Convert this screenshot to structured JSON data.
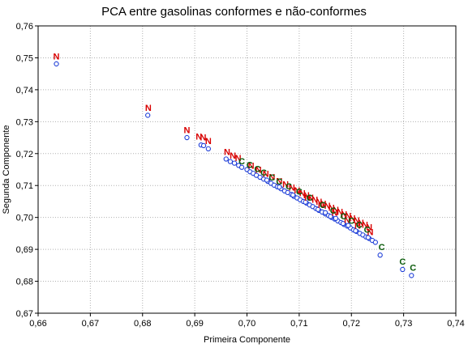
{
  "chart_data": {
    "type": "scatter",
    "title": "PCA entre gasolinas conformes e não-conformes",
    "xlabel": "Primeira Componente",
    "ylabel": "Segunda Componente",
    "xlim": [
      0.66,
      0.74
    ],
    "ylim": [
      0.67,
      0.76
    ],
    "xticks": [
      "0,66",
      "0,67",
      "0,68",
      "0,69",
      "0,70",
      "0,71",
      "0,72",
      "0,73",
      "0,74"
    ],
    "yticks": [
      "0,67",
      "0,68",
      "0,69",
      "0,70",
      "0,71",
      "0,72",
      "0,73",
      "0,74",
      "0,75",
      "0,76"
    ],
    "grid": true,
    "colors": {
      "points": "#1f3fd8",
      "label_N": "#d80000",
      "label_C": "#0a5a0a"
    },
    "series": [
      {
        "marker": "circle",
        "points": [
          [
            0.6635,
            0.7481
          ],
          [
            0.681,
            0.732
          ],
          [
            0.6885,
            0.725
          ],
          [
            0.6912,
            0.7227
          ],
          [
            0.6917,
            0.7225
          ],
          [
            0.6926,
            0.7215
          ],
          [
            0.696,
            0.7183
          ],
          [
            0.6968,
            0.7175
          ],
          [
            0.6976,
            0.717
          ],
          [
            0.6984,
            0.7163
          ],
          [
            0.699,
            0.7157
          ],
          [
            0.7,
            0.715
          ],
          [
            0.7006,
            0.7143
          ],
          [
            0.7012,
            0.7138
          ],
          [
            0.7018,
            0.7132
          ],
          [
            0.7025,
            0.7126
          ],
          [
            0.7032,
            0.712
          ],
          [
            0.704,
            0.7113
          ],
          [
            0.7046,
            0.7107
          ],
          [
            0.7052,
            0.7101
          ],
          [
            0.7058,
            0.7096
          ],
          [
            0.7065,
            0.709
          ],
          [
            0.7072,
            0.7083
          ],
          [
            0.7078,
            0.7078
          ],
          [
            0.7085,
            0.7072
          ],
          [
            0.709,
            0.7066
          ],
          [
            0.7096,
            0.7061
          ],
          [
            0.7102,
            0.7055
          ],
          [
            0.7108,
            0.705
          ],
          [
            0.7114,
            0.7045
          ],
          [
            0.712,
            0.7039
          ],
          [
            0.7126,
            0.7034
          ],
          [
            0.7132,
            0.7028
          ],
          [
            0.7138,
            0.7022
          ],
          [
            0.7144,
            0.7017
          ],
          [
            0.715,
            0.7011
          ],
          [
            0.7156,
            0.7006
          ],
          [
            0.7162,
            0.7
          ],
          [
            0.7168,
            0.6995
          ],
          [
            0.7174,
            0.6989
          ],
          [
            0.718,
            0.6984
          ],
          [
            0.7186,
            0.6978
          ],
          [
            0.7192,
            0.6973
          ],
          [
            0.7198,
            0.6967
          ],
          [
            0.7204,
            0.6961
          ],
          [
            0.721,
            0.6956
          ],
          [
            0.7216,
            0.695
          ],
          [
            0.7222,
            0.6945
          ],
          [
            0.7228,
            0.6939
          ],
          [
            0.7234,
            0.6934
          ],
          [
            0.724,
            0.6928
          ],
          [
            0.7246,
            0.6922
          ],
          [
            0.7038,
            0.7117
          ],
          [
            0.7062,
            0.7095
          ],
          [
            0.7088,
            0.707
          ],
          [
            0.7112,
            0.7048
          ],
          [
            0.7136,
            0.7025
          ],
          [
            0.716,
            0.7003
          ],
          [
            0.7184,
            0.6981
          ],
          [
            0.7208,
            0.6958
          ],
          [
            0.7232,
            0.6937
          ],
          [
            0.715,
            0.7015
          ],
          [
            0.717,
            0.6997
          ],
          [
            0.7194,
            0.6975
          ],
          [
            0.7255,
            0.6882
          ],
          [
            0.7298,
            0.6837
          ],
          [
            0.7315,
            0.6818
          ]
        ]
      },
      {
        "marker": "letter",
        "text": "N",
        "points": [
          [
            0.6635,
            0.7505
          ],
          [
            0.6811,
            0.7344
          ],
          [
            0.6885,
            0.7274
          ],
          [
            0.6908,
            0.7254
          ],
          [
            0.6916,
            0.7252
          ],
          [
            0.6926,
            0.724
          ],
          [
            0.6962,
            0.7206
          ],
          [
            0.6973,
            0.7195
          ],
          [
            0.6983,
            0.7187
          ],
          [
            0.7008,
            0.7163
          ],
          [
            0.7022,
            0.715
          ],
          [
            0.7036,
            0.7137
          ],
          [
            0.7048,
            0.7127
          ],
          [
            0.7062,
            0.7115
          ],
          [
            0.7074,
            0.7105
          ],
          [
            0.7086,
            0.7094
          ],
          [
            0.7096,
            0.7085
          ],
          [
            0.7106,
            0.7077
          ],
          [
            0.7114,
            0.707
          ],
          [
            0.7122,
            0.7063
          ],
          [
            0.713,
            0.7056
          ],
          [
            0.7138,
            0.705
          ],
          [
            0.7146,
            0.7043
          ],
          [
            0.7154,
            0.7037
          ],
          [
            0.7162,
            0.7031
          ],
          [
            0.717,
            0.7024
          ],
          [
            0.7178,
            0.7018
          ],
          [
            0.7186,
            0.7011
          ],
          [
            0.7194,
            0.7005
          ],
          [
            0.7202,
            0.6998
          ],
          [
            0.721,
            0.6991
          ],
          [
            0.7218,
            0.6984
          ],
          [
            0.7226,
            0.6977
          ],
          [
            0.7234,
            0.697
          ],
          [
            0.7116,
            0.7063
          ],
          [
            0.7142,
            0.704
          ],
          [
            0.7168,
            0.7016
          ],
          [
            0.7192,
            0.6993
          ],
          [
            0.7212,
            0.6975
          ],
          [
            0.7236,
            0.6955
          ]
        ]
      },
      {
        "marker": "letter",
        "text": "C",
        "points": [
          [
            0.699,
            0.7177
          ],
          [
            0.7005,
            0.7165
          ],
          [
            0.702,
            0.7152
          ],
          [
            0.7032,
            0.7141
          ],
          [
            0.7048,
            0.7126
          ],
          [
            0.7062,
            0.7113
          ],
          [
            0.708,
            0.7098
          ],
          [
            0.71,
            0.7081
          ],
          [
            0.712,
            0.7063
          ],
          [
            0.7145,
            0.704
          ],
          [
            0.7165,
            0.7022
          ],
          [
            0.7185,
            0.7004
          ],
          [
            0.72,
            0.699
          ],
          [
            0.7215,
            0.6977
          ],
          [
            0.723,
            0.6963
          ],
          [
            0.7258,
            0.6908
          ],
          [
            0.7298,
            0.6862
          ],
          [
            0.7318,
            0.6843
          ]
        ]
      }
    ]
  }
}
